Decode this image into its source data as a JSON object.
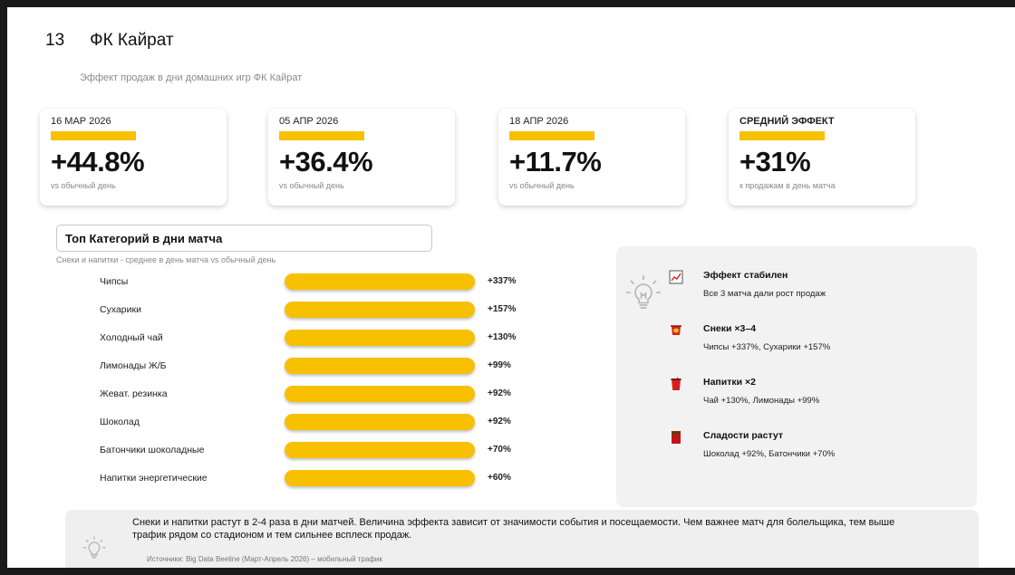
{
  "header": {
    "slide_number": "13",
    "title": "ФК Кайрат"
  },
  "subtitle": "Эффект продаж в дни домашних игр ФК Кайрат",
  "kpis": [
    {
      "date": "16 МАР 2026",
      "value": "+44.8%",
      "note": "vs обычный день"
    },
    {
      "date": "05 АПР 2026",
      "value": "+36.4%",
      "note": "vs обычный день"
    },
    {
      "date": "18 АПР 2026",
      "value": "+11.7%",
      "note": "vs обычный день"
    },
    {
      "date": "СРЕДНИЙ ЭФФЕКТ",
      "value": "+31%",
      "note": "к продажам в день матча"
    }
  ],
  "categories": {
    "title": "Топ Категорий в дни матча",
    "subtitle": "Снеки и напитки - среднее в день матча vs обычный день",
    "items": [
      {
        "label": "Чипсы",
        "value": "+337%"
      },
      {
        "label": "Сухарики",
        "value": "+157%"
      },
      {
        "label": "Холодный чай",
        "value": "+130%"
      },
      {
        "label": "Лимонады Ж/Б",
        "value": "+99%"
      },
      {
        "label": "Жеват. резинка",
        "value": "+92%"
      },
      {
        "label": "Шоколад",
        "value": "+92%"
      },
      {
        "label": "Батончики шоколадные",
        "value": "+70%"
      },
      {
        "label": "Напитки энергетические",
        "value": "+60%"
      }
    ]
  },
  "insights": [
    {
      "icon": "trend-chart-icon",
      "title": "Эффект стабилен",
      "text": "Все 3 матча дали рост продаж"
    },
    {
      "icon": "snack-icon",
      "title": "Снеки ×3–4",
      "text": "Чипсы +337%, Сухарики +157%"
    },
    {
      "icon": "drink-cup-icon",
      "title": "Напитки ×2",
      "text": "Чай +130%, Лимонады +99%"
    },
    {
      "icon": "chocolate-icon",
      "title": "Сладости растут",
      "text": "Шоколад +92%, Батончики +70%"
    }
  ],
  "footer": {
    "text": "Снеки и напитки растут в 2-4 раза в дни матчей. Величина эффекта зависит от значимости события и посещаемости. Чем важнее матч для болельщика, тем выше трафик рядом со стадионом и тем сильнее всплеск продаж.",
    "source": "Источники: Big Data Beeline (Март-Апрель 2026) – мобильный трафик"
  },
  "colors": {
    "accent": "#f7c000",
    "panel": "#f2f2f2"
  }
}
